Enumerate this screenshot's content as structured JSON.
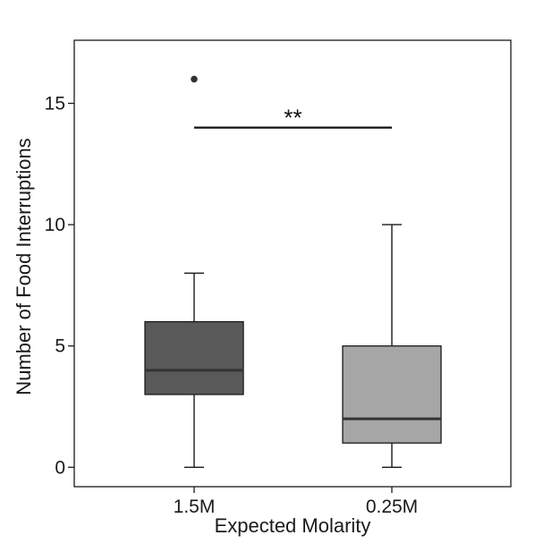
{
  "chart_data": {
    "type": "box",
    "title": "",
    "xlabel": "Expected Molarity",
    "ylabel": "Number of Food Interruptions",
    "categories": [
      "1.5M",
      "0.25M"
    ],
    "ylim": [
      -0.8,
      17.6
    ],
    "yticks": [
      0,
      5,
      10,
      15
    ],
    "ytick_labels": [
      "0",
      "5",
      "10",
      "15"
    ],
    "grid": false,
    "boxes": [
      {
        "category": "1.5M",
        "whisker_low": 0,
        "q1": 3,
        "median": 4,
        "q3": 6,
        "whisker_high": 8,
        "outliers": [
          16
        ],
        "color": "#595959"
      },
      {
        "category": "0.25M",
        "whisker_low": 0,
        "q1": 1,
        "median": 2,
        "q3": 5,
        "whisker_high": 10,
        "outliers": [],
        "color": "#a6a6a6"
      }
    ],
    "significance": {
      "from": "1.5M",
      "to": "0.25M",
      "y": 14,
      "label": "**"
    }
  }
}
